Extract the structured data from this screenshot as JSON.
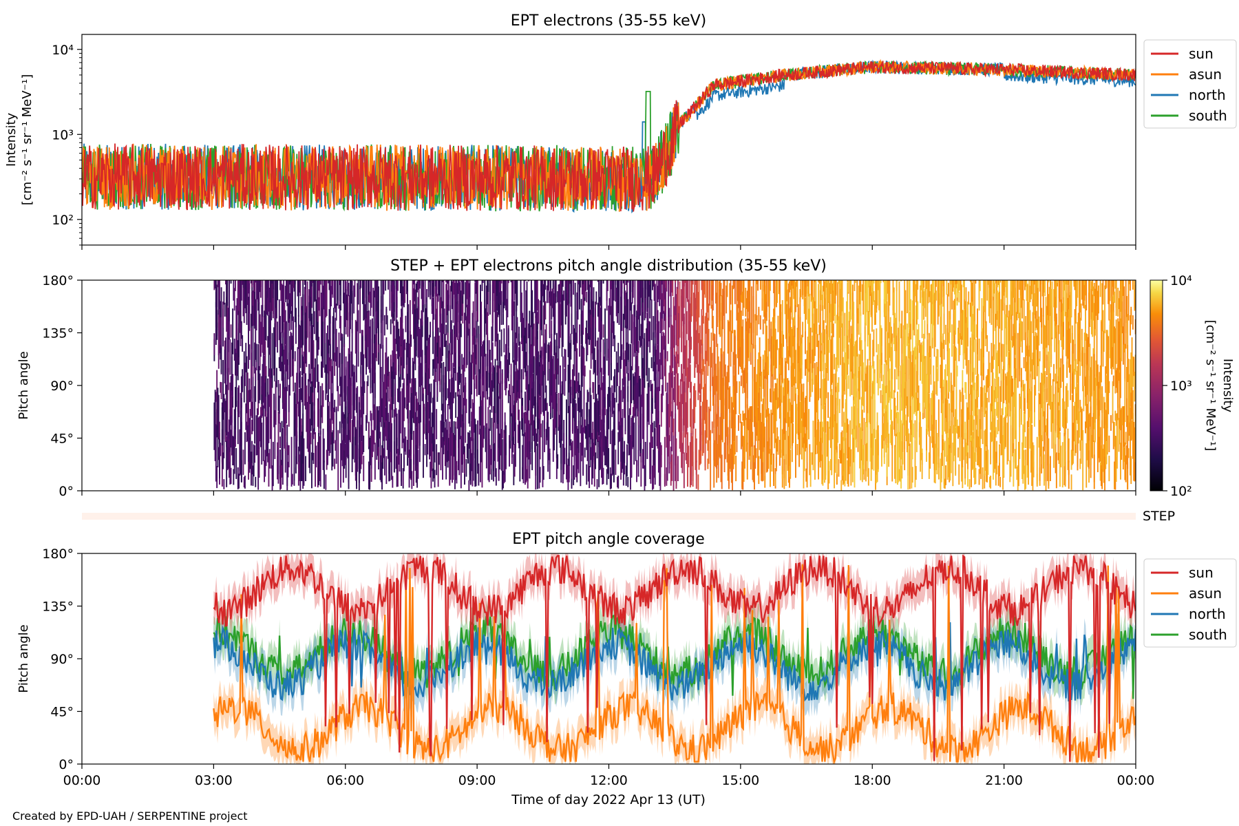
{
  "footer": {
    "credit": "Created by EPD-UAH / SERPENTINE project"
  },
  "colors": {
    "sun": "#d62728",
    "asun": "#ff7f0e",
    "north": "#1f77b4",
    "south": "#2ca02c",
    "step_band": "#fff1ea"
  },
  "chart_data": [
    {
      "type": "line",
      "title": "EPT electrons (35-55 keV)",
      "ylabel_line1": "Intensity",
      "ylabel_line2": "[cm⁻² s⁻¹ sr⁻¹ MeV⁻¹]",
      "yscale": "log",
      "ylim": [
        50,
        15000
      ],
      "y_ticks": [
        {
          "value": 100,
          "label": "10²"
        },
        {
          "value": 1000,
          "label": "10³"
        },
        {
          "value": 10000,
          "label": "10⁴"
        }
      ],
      "xlim_hours": [
        0,
        24
      ],
      "legend": [
        "sun",
        "asun",
        "north",
        "south"
      ],
      "legend_position": "outside-right",
      "profile": {
        "description_points_hours": [
          0,
          13.0,
          13.6,
          14.4,
          16.0,
          18.0,
          21.0,
          24.0
        ],
        "base_intensity": [
          350,
          330,
          1300,
          3800,
          5000,
          6200,
          5800,
          5000
        ]
      },
      "spike": {
        "series": "south",
        "hour": 12.9,
        "value": 3200
      }
    },
    {
      "type": "heatmap",
      "title": "STEP + EPT electrons pitch angle distribution (35-55 keV)",
      "ylabel": "Pitch angle",
      "ylim": [
        0,
        180
      ],
      "y_ticks": [
        "0°",
        "45°",
        "90°",
        "135°",
        "180°"
      ],
      "data_start_hour": 3.0,
      "colorbar": {
        "label_line1": "Intensity",
        "label_line2": "[cm⁻² s⁻¹ sr⁻¹ MeV⁻¹]",
        "scale": "log",
        "range": [
          100,
          10000
        ],
        "ticks": [
          "10²",
          "10³",
          "10⁴"
        ],
        "colormap": "inferno"
      },
      "step_label": "STEP"
    },
    {
      "type": "line",
      "title": "EPT pitch angle coverage",
      "ylabel": "Pitch angle",
      "xlabel": "Time of day 2022 Apr 13 (UT)",
      "ylim": [
        0,
        180
      ],
      "y_ticks": [
        "0°",
        "45°",
        "90°",
        "135°",
        "180°"
      ],
      "x_ticks": [
        "00:00",
        "03:00",
        "06:00",
        "09:00",
        "12:00",
        "15:00",
        "18:00",
        "21:00",
        "00:00"
      ],
      "data_start_hour": 3.0,
      "legend": [
        "sun",
        "asun",
        "north",
        "south"
      ],
      "legend_position": "outside-right",
      "series_mean_pitch_angle": {
        "sun": 150,
        "asun": 30,
        "north": 85,
        "south": 95
      }
    }
  ]
}
